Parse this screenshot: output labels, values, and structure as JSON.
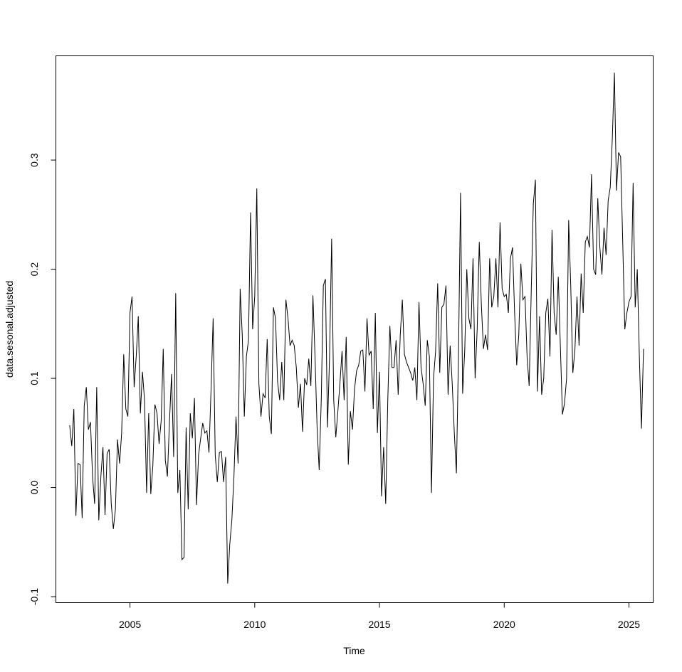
{
  "chart_data": {
    "type": "line",
    "title": "",
    "xlabel": "Time",
    "ylabel": "data.sesonal.adjusted",
    "xlim": [
      2002.03,
      2025.97
    ],
    "ylim": [
      -0.1055,
      0.3955
    ],
    "x_ticks": [
      2005,
      2010,
      2015,
      2020,
      2025
    ],
    "x_tick_labels": [
      "2005",
      "2010",
      "2015",
      "2020",
      "2025"
    ],
    "y_ticks": [
      -0.1,
      0.0,
      0.1,
      0.2,
      0.3
    ],
    "y_tick_labels": [
      "-0.1",
      "0.0",
      "0.1",
      "0.2",
      "0.3"
    ],
    "grid": false,
    "line_color": "#000000",
    "series": [
      {
        "start": 2002.583,
        "frequency": 12,
        "values": [
          0.057,
          0.038,
          0.072,
          -0.026,
          0.022,
          0.021,
          -0.028,
          0.075,
          0.092,
          0.053,
          0.06,
          0.01,
          -0.015,
          0.092,
          -0.03,
          0.01,
          0.037,
          -0.025,
          0.031,
          0.035,
          -0.015,
          -0.038,
          -0.02,
          0.044,
          0.022,
          0.05,
          0.122,
          0.072,
          0.065,
          0.16,
          0.175,
          0.092,
          0.12,
          0.157,
          0.068,
          0.106,
          0.08,
          -0.005,
          0.068,
          -0.006,
          0.02,
          0.076,
          0.068,
          0.04,
          0.061,
          0.127,
          0.025,
          0.01,
          0.06,
          0.104,
          0.028,
          0.178,
          -0.005,
          0.016,
          -0.066,
          -0.064,
          0.055,
          -0.02,
          0.068,
          0.045,
          0.082,
          -0.016,
          0.03,
          0.045,
          0.059,
          0.05,
          0.052,
          0.032,
          0.09,
          0.155,
          0.03,
          0.005,
          0.032,
          0.033,
          0.005,
          0.028,
          -0.088,
          -0.052,
          -0.03,
          0.01,
          0.065,
          0.022,
          0.182,
          0.14,
          0.065,
          0.12,
          0.135,
          0.252,
          0.145,
          0.175,
          0.274,
          0.095,
          0.065,
          0.086,
          0.082,
          0.136,
          0.065,
          0.049,
          0.165,
          0.155,
          0.097,
          0.08,
          0.115,
          0.08,
          0.172,
          0.155,
          0.13,
          0.135,
          0.13,
          0.11,
          0.073,
          0.095,
          0.051,
          0.1,
          0.094,
          0.118,
          0.093,
          0.176,
          0.12,
          0.055,
          0.016,
          0.08,
          0.185,
          0.191,
          0.055,
          0.12,
          0.228,
          0.08,
          0.046,
          0.07,
          0.096,
          0.125,
          0.08,
          0.138,
          0.021,
          0.07,
          0.053,
          0.09,
          0.107,
          0.112,
          0.125,
          0.126,
          0.088,
          0.155,
          0.121,
          0.125,
          0.072,
          0.16,
          0.05,
          0.106,
          -0.008,
          0.037,
          -0.015,
          0.08,
          0.148,
          0.11,
          0.11,
          0.135,
          0.085,
          0.14,
          0.172,
          0.122,
          0.115,
          0.11,
          0.105,
          0.098,
          0.11,
          0.08,
          0.17,
          0.11,
          0.095,
          0.075,
          0.135,
          0.12,
          -0.005,
          0.1,
          0.125,
          0.187,
          0.105,
          0.165,
          0.168,
          0.185,
          0.085,
          0.13,
          0.095,
          0.05,
          0.013,
          0.12,
          0.27,
          0.086,
          0.125,
          0.2,
          0.155,
          0.145,
          0.21,
          0.1,
          0.145,
          0.225,
          0.168,
          0.127,
          0.14,
          0.126,
          0.21,
          0.165,
          0.175,
          0.21,
          0.165,
          0.243,
          0.182,
          0.175,
          0.177,
          0.16,
          0.21,
          0.22,
          0.16,
          0.112,
          0.14,
          0.205,
          0.172,
          0.175,
          0.12,
          0.093,
          0.18,
          0.26,
          0.282,
          0.088,
          0.157,
          0.085,
          0.1,
          0.16,
          0.173,
          0.12,
          0.236,
          0.16,
          0.14,
          0.193,
          0.13,
          0.067,
          0.077,
          0.1,
          0.245,
          0.185,
          0.105,
          0.126,
          0.175,
          0.13,
          0.196,
          0.16,
          0.225,
          0.23,
          0.22,
          0.287,
          0.2,
          0.195,
          0.265,
          0.22,
          0.195,
          0.238,
          0.213,
          0.263,
          0.275,
          0.32,
          0.38,
          0.272,
          0.307,
          0.303,
          0.225,
          0.145,
          0.16,
          0.17,
          0.175,
          0.279,
          0.165,
          0.2,
          0.12,
          0.054,
          0.127
        ]
      }
    ]
  }
}
